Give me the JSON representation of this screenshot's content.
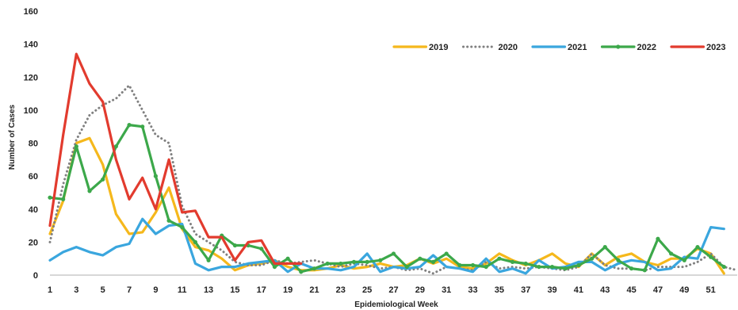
{
  "chart_data": {
    "type": "line",
    "title": "",
    "xlabel": "Epidemiological Week",
    "ylabel": "Number of Cases",
    "ylim": [
      0,
      160
    ],
    "yticks": [
      0,
      20,
      40,
      60,
      80,
      100,
      120,
      140,
      160
    ],
    "xlim": [
      1,
      53
    ],
    "xtick_labels": [
      "1",
      "3",
      "5",
      "7",
      "9",
      "11",
      "13",
      "15",
      "17",
      "19",
      "21",
      "23",
      "25",
      "27",
      "29",
      "31",
      "33",
      "35",
      "37",
      "39",
      "41",
      "43",
      "45",
      "47",
      "49",
      "51"
    ],
    "grid": false,
    "legend_position": "top-right",
    "series": [
      {
        "name": "2019",
        "color": "#f5b81c",
        "style": "solid",
        "markers": false,
        "values": [
          25,
          45,
          80,
          83,
          67,
          37,
          25,
          26,
          38,
          53,
          28,
          17,
          15,
          10,
          3,
          6,
          7,
          9,
          5,
          3,
          3,
          4,
          6,
          4,
          5,
          7,
          5,
          6,
          10,
          7,
          10,
          5,
          4,
          7,
          13,
          9,
          6,
          9,
          13,
          7,
          5,
          13,
          6,
          11,
          13,
          8,
          6,
          10,
          10,
          16,
          13,
          1
        ]
      },
      {
        "name": "2020",
        "color": "#808080",
        "style": "dotted",
        "markers": false,
        "values": [
          20,
          55,
          82,
          97,
          103,
          107,
          115,
          100,
          85,
          80,
          42,
          25,
          20,
          15,
          8,
          6,
          6,
          9,
          7,
          8,
          9,
          7,
          5,
          7,
          6,
          4,
          5,
          3,
          4,
          1,
          5,
          4,
          3,
          8,
          4,
          5,
          4,
          5,
          4,
          3,
          5,
          13,
          6,
          4,
          4,
          3,
          5,
          5,
          5,
          8,
          13,
          5,
          3
        ]
      },
      {
        "name": "2021",
        "color": "#3aa6de",
        "style": "solid",
        "markers": false,
        "values": [
          9,
          14,
          17,
          14,
          12,
          17,
          19,
          34,
          25,
          30,
          31,
          7,
          3,
          5,
          5,
          7,
          8,
          9,
          2,
          7,
          4,
          4,
          3,
          5,
          13,
          2,
          5,
          4,
          5,
          12,
          5,
          4,
          2,
          10,
          2,
          4,
          1,
          9,
          4,
          5,
          8,
          8,
          3,
          7,
          9,
          8,
          3,
          4,
          11,
          10,
          29,
          28
        ]
      },
      {
        "name": "2022",
        "color": "#3ca84a",
        "style": "solid",
        "markers": true,
        "values": [
          47,
          46,
          78,
          51,
          58,
          78,
          91,
          90,
          60,
          33,
          29,
          20,
          9,
          24,
          18,
          18,
          16,
          5,
          10,
          2,
          4,
          7,
          7,
          8,
          8,
          9,
          13,
          5,
          10,
          8,
          13,
          6,
          6,
          5,
          10,
          8,
          7,
          5,
          5,
          4,
          6,
          10,
          17,
          9,
          4,
          3,
          22,
          13,
          9,
          17,
          11,
          5
        ]
      },
      {
        "name": "2023",
        "color": "#e23b2e",
        "style": "solid",
        "markers": false,
        "values": [
          30,
          85,
          134,
          116,
          105,
          70,
          46,
          59,
          40,
          70,
          38,
          39,
          23,
          23,
          9,
          20,
          21,
          7,
          7,
          7
        ]
      }
    ]
  }
}
